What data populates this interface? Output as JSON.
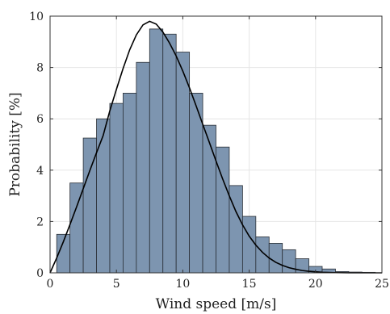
{
  "chart_data": {
    "type": "bar",
    "title": "",
    "xlabel": "Wind speed [m/s]",
    "ylabel": "Probability [%]",
    "xlim": [
      0,
      25
    ],
    "ylim": [
      0,
      10
    ],
    "xticks": [
      "0",
      "5",
      "10",
      "15",
      "20",
      "25"
    ],
    "yticks": [
      "0",
      "2",
      "4",
      "6",
      "8",
      "10"
    ],
    "grid": true,
    "bin_width": 1,
    "bin_left_edges": [
      0.5,
      1.5,
      2.5,
      3.5,
      4.5,
      5.5,
      6.5,
      7.5,
      8.5,
      9.5,
      10.5,
      11.5,
      12.5,
      13.5,
      14.5,
      15.5,
      16.5,
      17.5,
      18.5,
      19.5,
      20.5,
      21.5,
      22.5,
      23.5
    ],
    "values": [
      1.5,
      3.5,
      5.25,
      6.0,
      6.6,
      7.0,
      8.2,
      9.5,
      9.3,
      8.6,
      7.0,
      5.75,
      4.9,
      3.4,
      2.2,
      1.4,
      1.15,
      0.9,
      0.55,
      0.25,
      0.15,
      0.05,
      0.03,
      0.02
    ],
    "curve": {
      "type": "line",
      "x": [
        0,
        0.5,
        1,
        1.5,
        2,
        2.5,
        3,
        3.5,
        4,
        4.5,
        5,
        5.5,
        6,
        6.5,
        7,
        7.5,
        8,
        8.5,
        9,
        9.5,
        10,
        10.5,
        11,
        11.5,
        12,
        12.5,
        13,
        13.5,
        14,
        14.5,
        15,
        15.5,
        16,
        16.5,
        17,
        17.5,
        18,
        18.5,
        19,
        19.5,
        20,
        20.5,
        21,
        21.5,
        22,
        22.5,
        23,
        23.5,
        24,
        24.5,
        25
      ],
      "y": [
        0,
        0.58,
        1.21,
        1.88,
        2.57,
        3.28,
        3.99,
        4.68,
        5.35,
        6.31,
        7.15,
        7.96,
        8.69,
        9.27,
        9.66,
        9.8,
        9.69,
        9.38,
        8.95,
        8.45,
        7.86,
        7.21,
        6.51,
        5.79,
        5.08,
        4.36,
        3.66,
        3.0,
        2.39,
        1.87,
        1.43,
        1.08,
        0.8,
        0.58,
        0.41,
        0.29,
        0.2,
        0.14,
        0.09,
        0.06,
        0.04,
        0.02,
        0.014,
        0.008,
        0.005,
        0.003,
        0.002,
        0.001,
        0.0,
        0.0,
        0.0
      ]
    },
    "colors": {
      "bar_fill": "#7d95b0",
      "bar_stroke": "#2a2f36",
      "curve": "#000000",
      "grid": "#e6e6e6",
      "axis": "#333333"
    }
  }
}
